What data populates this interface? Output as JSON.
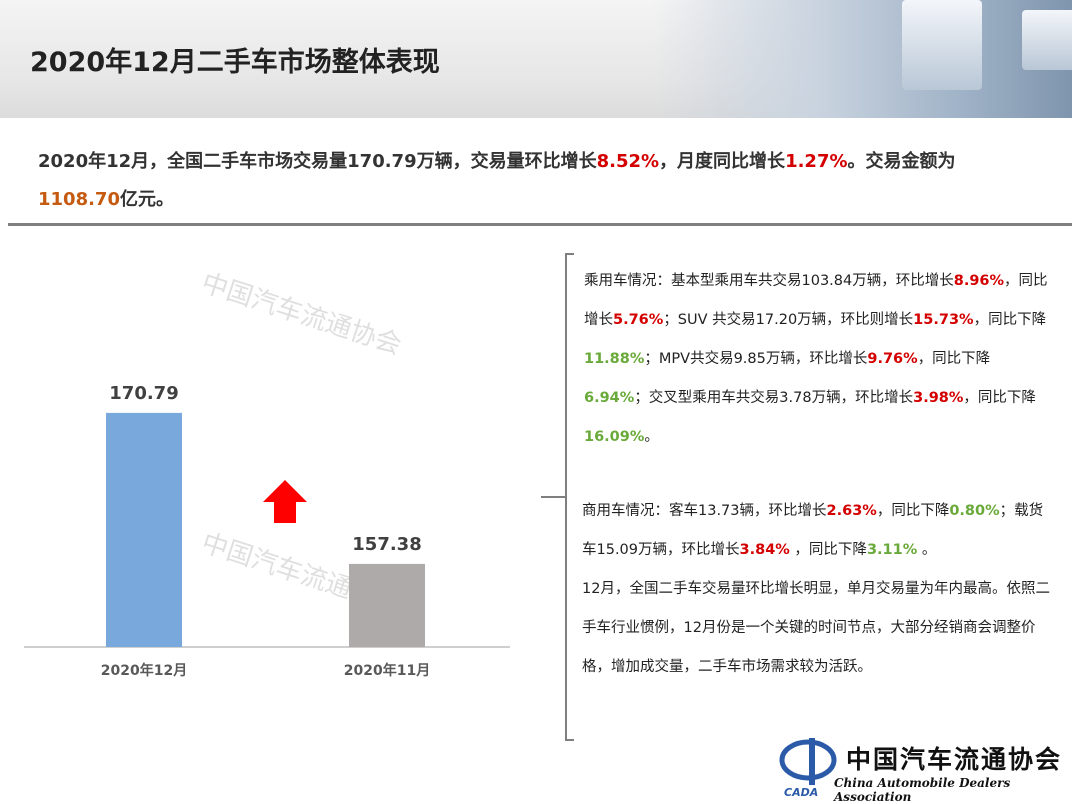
{
  "header": {
    "title": "2020年12月二手车市场整体表现"
  },
  "summary": {
    "p1": "2020年12月，全国二手车市场交易量170.79万辆，交易量环比增长",
    "v1": "8.52%",
    "p2": "，月度同比增长",
    "v2": "1.27%",
    "p3": "。交易金额为",
    "v3": "1108.70",
    "p4": "亿元。"
  },
  "chart_data": {
    "type": "bar",
    "categories": [
      "2020年12月",
      "2020年11月"
    ],
    "values": [
      170.79,
      157.38
    ],
    "data_labels": [
      "170.79",
      "157.38"
    ],
    "ylim": [
      150,
      175
    ],
    "colors": [
      "#79a9dc",
      "#aeaaaa"
    ],
    "grid": false,
    "annotation": "red-up-arrow"
  },
  "notes": {
    "passenger": [
      {
        "t": "乘用车情况：基本型乘用车共交易103.84万辆，环比增长"
      },
      {
        "t": "8.96%",
        "c": "red"
      },
      {
        "t": "，同比增长"
      },
      {
        "t": "5.76%",
        "c": "red"
      },
      {
        "t": "；SUV 共交易17.20万辆，环比则增长"
      },
      {
        "t": "15.73%",
        "c": "red"
      },
      {
        "t": "，同比下降"
      },
      {
        "t": "11.88%",
        "c": "green"
      },
      {
        "t": "；MPV共交易9.85万辆，环比增长"
      },
      {
        "t": "9.76%",
        "c": "red"
      },
      {
        "t": "，同比下降"
      },
      {
        "t": "6.94%",
        "c": "green"
      },
      {
        "t": "；交叉型乘用车共交易3.78万辆，环比增长"
      },
      {
        "t": "3.98%",
        "c": "red"
      },
      {
        "t": "，同比下降"
      },
      {
        "t": "16.09%",
        "c": "green"
      },
      {
        "t": "。"
      }
    ],
    "commercial": [
      {
        "t": "商用车情况：客车13.73辆，环比增长"
      },
      {
        "t": "2.63%",
        "c": "red"
      },
      {
        "t": "，同比下降"
      },
      {
        "t": "0.80%",
        "c": "green"
      },
      {
        "t": "；载货车15.09万辆，环比增长"
      },
      {
        "t": "3.84%",
        "c": "red"
      },
      {
        "t": " ，同比下降"
      },
      {
        "t": "3.11%",
        "c": "green"
      },
      {
        "t": " 。"
      }
    ],
    "conclusion": "12月，全国二手车交易量环比增长明显，单月交易量为年内最高。依照二手车行业惯例，12月份是一个关键的时间节点，大部分经销商会调整价格，增加成交量，二手车市场需求较为活跃。"
  },
  "logo": {
    "cn": "中国汽车流通协会",
    "en": "China Automobile Dealers Association",
    "abbr": "CADA"
  },
  "colors": {
    "red": "#d40000",
    "green": "#6aaa3a",
    "orange": "#c55a11",
    "arrow": "#ff0000"
  }
}
